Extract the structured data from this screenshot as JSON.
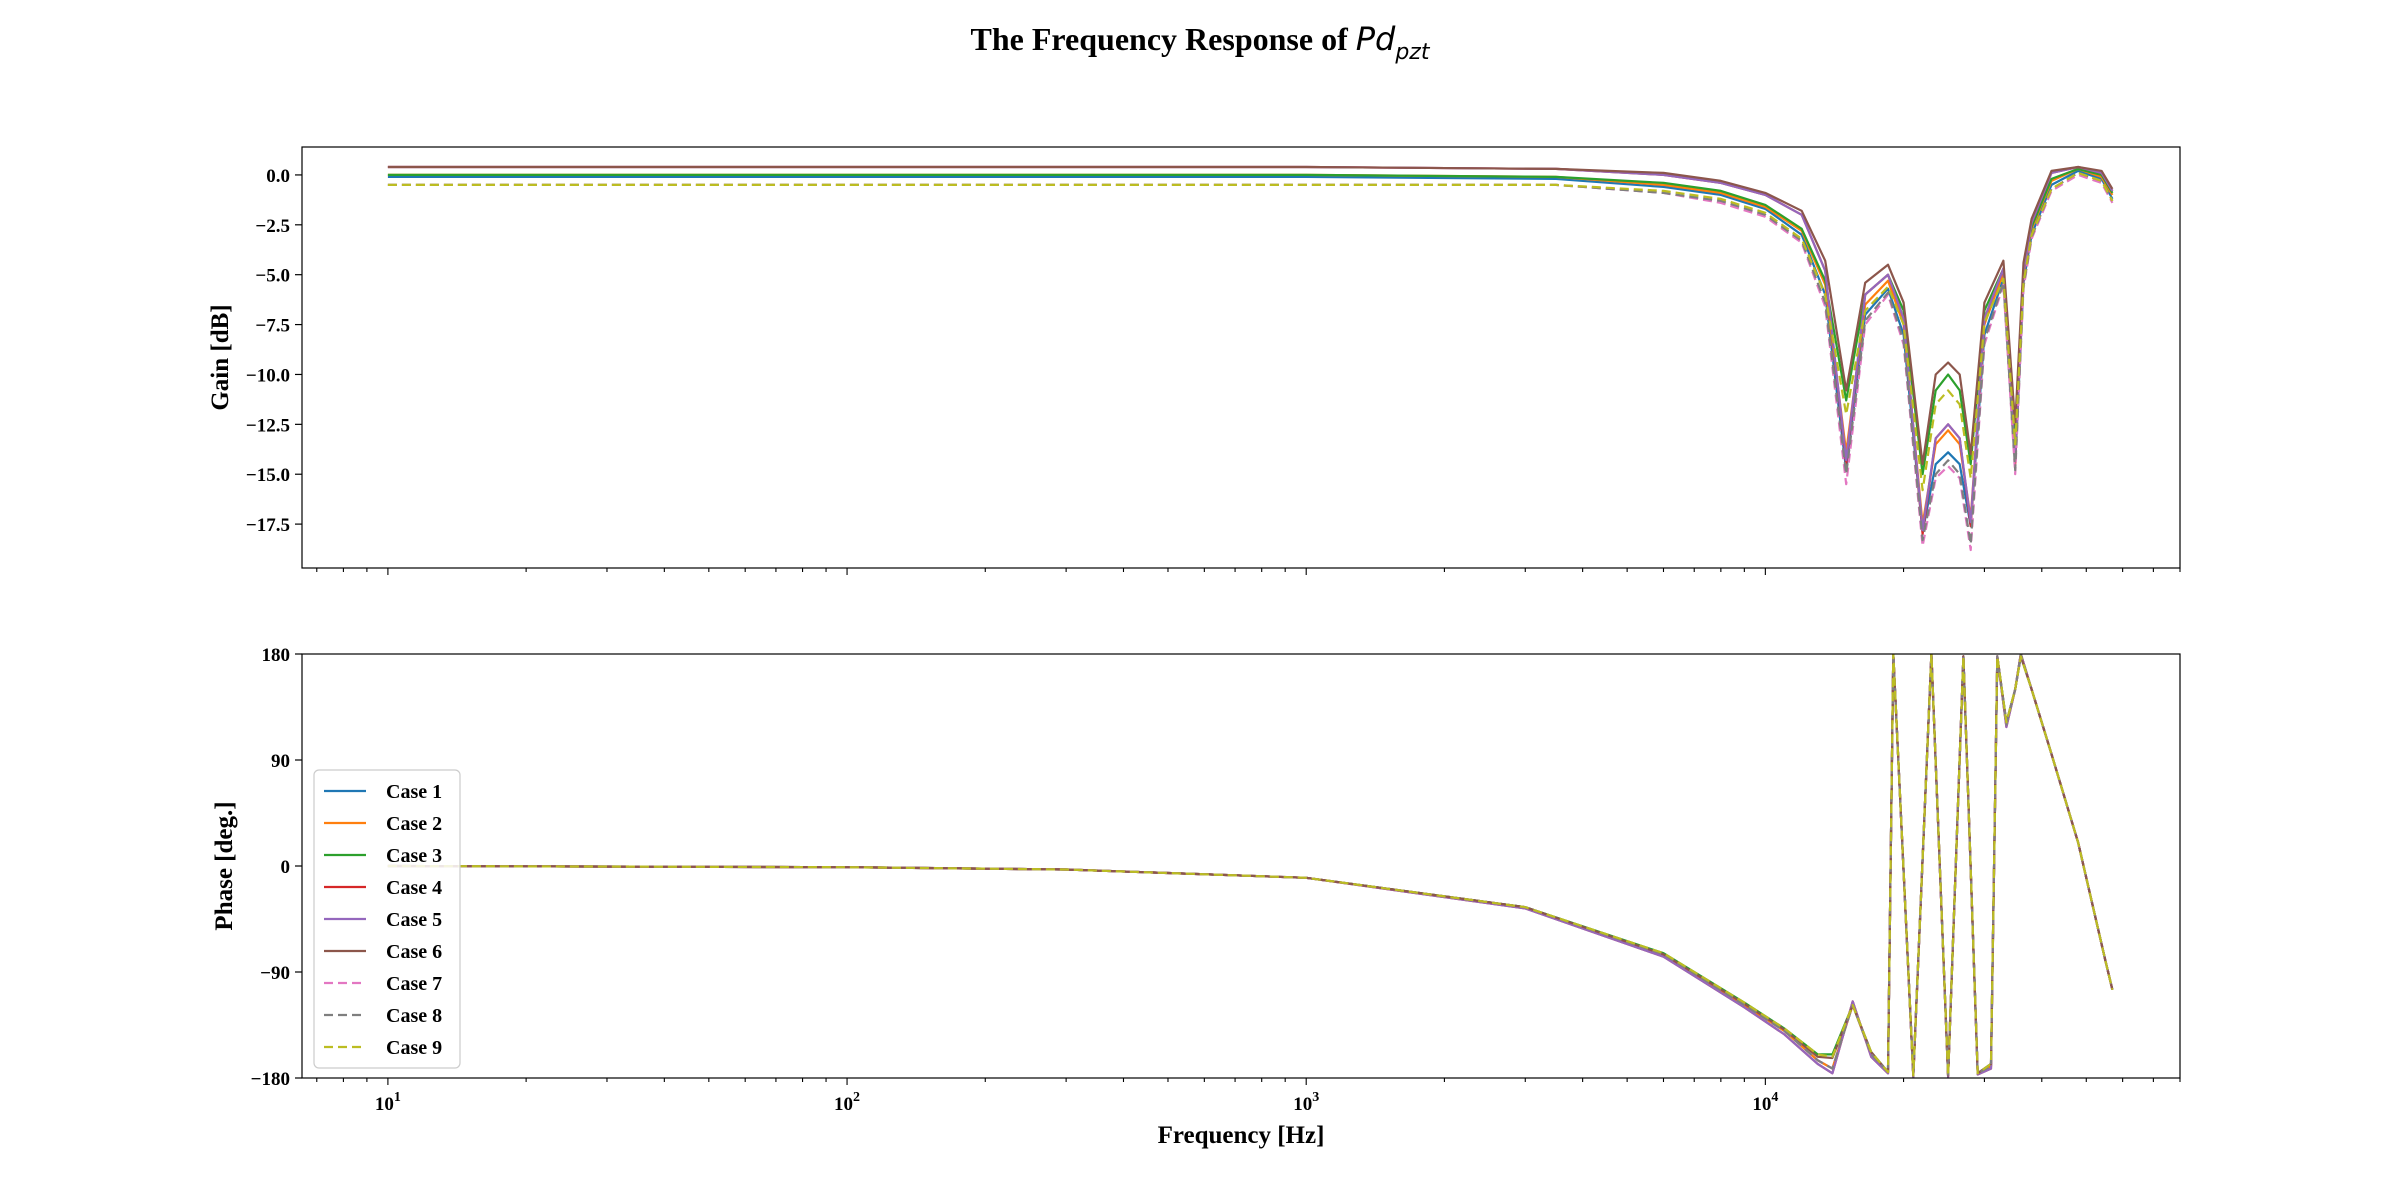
{
  "title": {
    "prefix": "The Frequency Response of ",
    "math_base": "Pd",
    "math_sub": "pzt"
  },
  "chart_data": [
    {
      "type": "line",
      "panel": "gain",
      "ylabel": "Gain [dB]",
      "xscale": "log",
      "xlim": [
        6.5,
        80000
      ],
      "ylim": [
        -19.7,
        1.4
      ],
      "yticks": [
        0.0,
        -2.5,
        -5.0,
        -7.5,
        -10.0,
        -12.5,
        -15.0,
        -17.5
      ],
      "ytick_labels": [
        "0.0",
        "−2.5",
        "−5.0",
        "−7.5",
        "−10.0",
        "−12.5",
        "−15.0",
        "−17.5"
      ],
      "x": [
        10,
        100,
        1000,
        3500,
        6000,
        8000,
        10000,
        12000,
        13500,
        15000,
        16500,
        18500,
        20000,
        22000,
        23500,
        25000,
        26500,
        28000,
        30000,
        33000,
        35000,
        36500,
        38000,
        42000,
        48000,
        54000,
        57000
      ],
      "series": [
        {
          "name": "Case 1",
          "color": "#1f77b4",
          "dash": "solid",
          "values": [
            -0.1,
            -0.1,
            -0.1,
            -0.2,
            -0.6,
            -1.0,
            -1.7,
            -3.0,
            -6.0,
            -14.8,
            -7.0,
            -5.7,
            -8.0,
            -17.9,
            -14.5,
            -13.9,
            -14.5,
            -17.6,
            -8.0,
            -5.2,
            -14.4,
            -5.4,
            -3.0,
            -0.5,
            0.2,
            -0.2,
            -1.2
          ]
        },
        {
          "name": "Case 2",
          "color": "#ff7f0e",
          "dash": "solid",
          "values": [
            0.0,
            0.0,
            0.0,
            -0.1,
            -0.5,
            -0.9,
            -1.6,
            -2.8,
            -5.5,
            -13.9,
            -6.5,
            -5.3,
            -7.5,
            -17.5,
            -13.5,
            -12.8,
            -13.5,
            -17.2,
            -7.5,
            -4.9,
            -14.0,
            -5.0,
            -2.7,
            -0.3,
            0.3,
            -0.1,
            -1.0
          ]
        },
        {
          "name": "Case 3",
          "color": "#2ca02c",
          "dash": "solid",
          "values": [
            0.0,
            0.0,
            0.0,
            -0.1,
            -0.4,
            -0.8,
            -1.5,
            -2.7,
            -5.3,
            -11.3,
            -6.0,
            -5.0,
            -6.8,
            -15.0,
            -10.8,
            -10.0,
            -10.8,
            -14.5,
            -6.8,
            -4.7,
            -13.0,
            -4.8,
            -2.6,
            -0.2,
            0.3,
            0.0,
            -0.9
          ]
        },
        {
          "name": "Case 4",
          "color": "#d62728",
          "dash": "solid",
          "values": [
            0.4,
            0.4,
            0.4,
            0.3,
            0.0,
            -0.4,
            -1.0,
            -2.0,
            -4.8,
            -14.5,
            -6.0,
            -5.0,
            -7.2,
            -18.0,
            -13.2,
            -12.5,
            -13.2,
            -17.6,
            -7.2,
            -4.7,
            -14.5,
            -4.9,
            -2.4,
            0.1,
            0.4,
            0.1,
            -0.8
          ]
        },
        {
          "name": "Case 5",
          "color": "#9467bd",
          "dash": "solid",
          "values": [
            0.4,
            0.4,
            0.4,
            0.3,
            0.0,
            -0.4,
            -1.0,
            -2.0,
            -4.8,
            -14.3,
            -6.0,
            -5.0,
            -7.2,
            -17.8,
            -13.2,
            -12.5,
            -13.2,
            -17.4,
            -7.2,
            -4.7,
            -14.3,
            -4.9,
            -2.4,
            0.1,
            0.4,
            0.1,
            -0.8
          ]
        },
        {
          "name": "Case 6",
          "color": "#8c564b",
          "dash": "solid",
          "values": [
            0.4,
            0.4,
            0.4,
            0.3,
            0.1,
            -0.3,
            -0.9,
            -1.8,
            -4.3,
            -10.8,
            -5.4,
            -4.5,
            -6.4,
            -14.5,
            -10.0,
            -9.4,
            -10.0,
            -14.0,
            -6.4,
            -4.3,
            -12.5,
            -4.4,
            -2.2,
            0.2,
            0.4,
            0.2,
            -0.7
          ]
        },
        {
          "name": "Case 7",
          "color": "#e377c2",
          "dash": "dashed",
          "values": [
            -0.5,
            -0.5,
            -0.5,
            -0.5,
            -0.9,
            -1.4,
            -2.1,
            -3.4,
            -6.6,
            -15.5,
            -7.5,
            -6.0,
            -8.5,
            -18.6,
            -15.2,
            -14.6,
            -15.2,
            -18.8,
            -8.5,
            -5.5,
            -15.0,
            -5.7,
            -3.2,
            -0.8,
            0.0,
            -0.4,
            -1.4
          ]
        },
        {
          "name": "Case 8",
          "color": "#7f7f7f",
          "dash": "dashed",
          "values": [
            -0.5,
            -0.5,
            -0.5,
            -0.5,
            -0.9,
            -1.3,
            -2.0,
            -3.3,
            -6.4,
            -15.0,
            -7.3,
            -5.9,
            -8.3,
            -18.3,
            -15.0,
            -14.3,
            -15.0,
            -18.5,
            -8.3,
            -5.4,
            -14.8,
            -5.6,
            -3.1,
            -0.7,
            0.1,
            -0.3,
            -1.3
          ]
        },
        {
          "name": "Case 9",
          "color": "#bcbd22",
          "dash": "dashed",
          "values": [
            -0.5,
            -0.5,
            -0.5,
            -0.5,
            -0.8,
            -1.2,
            -1.9,
            -3.2,
            -6.0,
            -12.0,
            -6.8,
            -5.6,
            -7.5,
            -15.8,
            -11.5,
            -10.8,
            -11.5,
            -15.2,
            -7.4,
            -5.2,
            -13.5,
            -5.4,
            -3.0,
            -0.7,
            0.1,
            -0.3,
            -1.3
          ]
        }
      ]
    },
    {
      "type": "line",
      "panel": "phase",
      "ylabel": "Phase [deg.]",
      "xlabel": "Frequency [Hz]",
      "xscale": "log",
      "xlim": [
        6.5,
        80000
      ],
      "ylim": [
        -180,
        180
      ],
      "yticks": [
        180,
        90,
        0,
        -90,
        -180
      ],
      "ytick_labels": [
        "180",
        "90",
        "0",
        "−90",
        "−180"
      ],
      "xticks": [
        10,
        100,
        1000,
        10000
      ],
      "xtick_labels": [
        {
          "base": "10",
          "exp": "1"
        },
        {
          "base": "10",
          "exp": "2"
        },
        {
          "base": "10",
          "exp": "3"
        },
        {
          "base": "10",
          "exp": "4"
        }
      ],
      "legend": {
        "placement": "lower-left"
      },
      "x": [
        10,
        100,
        300,
        1000,
        3000,
        6000,
        9000,
        11000,
        13000,
        14000,
        15500,
        17000,
        18500,
        19000,
        21000,
        23000,
        25000,
        27000,
        29000,
        31000,
        32000,
        33500,
        35000,
        36000,
        38000,
        42000,
        48000,
        55000,
        57000
      ],
      "series": [
        {
          "name": "Case 1",
          "color": "#1f77b4",
          "dash": "solid",
          "values": [
            0,
            -1,
            -3,
            -10,
            -35,
            -75,
            -118,
            -140,
            -165,
            -172,
            -118,
            -160,
            -175,
            180,
            -178,
            180,
            -178,
            178,
            -176,
            -170,
            178,
            120,
            150,
            180,
            150,
            95,
            20,
            -80,
            -105
          ]
        },
        {
          "name": "Case 2",
          "color": "#ff7f0e",
          "dash": "solid",
          "values": [
            0,
            -1,
            -3,
            -10,
            -35,
            -75,
            -118,
            -140,
            -165,
            -172,
            -118,
            -160,
            -175,
            180,
            -178,
            180,
            -178,
            178,
            -176,
            -170,
            178,
            120,
            150,
            180,
            150,
            95,
            20,
            -80,
            -105
          ]
        },
        {
          "name": "Case 3",
          "color": "#2ca02c",
          "dash": "solid",
          "values": [
            0,
            -1,
            -3,
            -10,
            -35,
            -74,
            -116,
            -138,
            -160,
            -160,
            -118,
            -158,
            -175,
            180,
            -178,
            180,
            -178,
            178,
            -176,
            -168,
            178,
            122,
            150,
            178,
            150,
            95,
            20,
            -80,
            -105
          ]
        },
        {
          "name": "Case 4",
          "color": "#d62728",
          "dash": "solid",
          "values": [
            0,
            -1,
            -3,
            -10,
            -36,
            -77,
            -120,
            -143,
            -168,
            -176,
            -115,
            -162,
            -176,
            180,
            -179,
            180,
            -179,
            178,
            -177,
            -172,
            178,
            118,
            150,
            180,
            150,
            95,
            20,
            -80,
            -105
          ]
        },
        {
          "name": "Case 5",
          "color": "#9467bd",
          "dash": "solid",
          "values": [
            0,
            -1,
            -3,
            -10,
            -36,
            -77,
            -120,
            -143,
            -168,
            -176,
            -115,
            -162,
            -176,
            180,
            -179,
            180,
            -179,
            178,
            -177,
            -172,
            178,
            118,
            150,
            180,
            150,
            95,
            20,
            -80,
            -105
          ]
        },
        {
          "name": "Case 6",
          "color": "#8c564b",
          "dash": "solid",
          "values": [
            0,
            -1,
            -3,
            -10,
            -35,
            -75,
            -117,
            -139,
            -162,
            -163,
            -118,
            -158,
            -175,
            180,
            -178,
            180,
            -178,
            178,
            -176,
            -168,
            178,
            122,
            150,
            178,
            150,
            95,
            20,
            -80,
            -105
          ]
        },
        {
          "name": "Case 7",
          "color": "#e377c2",
          "dash": "dashed",
          "values": [
            0,
            -1,
            -3,
            -10,
            -35,
            -75,
            -118,
            -140,
            -165,
            -172,
            -118,
            -160,
            -175,
            180,
            -178,
            180,
            -178,
            178,
            -176,
            -170,
            178,
            120,
            150,
            180,
            150,
            95,
            20,
            -80,
            -105
          ]
        },
        {
          "name": "Case 8",
          "color": "#7f7f7f",
          "dash": "dashed",
          "values": [
            0,
            -1,
            -3,
            -10,
            -35,
            -75,
            -118,
            -140,
            -165,
            -172,
            -118,
            -160,
            -175,
            180,
            -178,
            180,
            -178,
            178,
            -176,
            -170,
            178,
            120,
            150,
            180,
            150,
            95,
            20,
            -80,
            -105
          ]
        },
        {
          "name": "Case 9",
          "color": "#bcbd22",
          "dash": "dashed",
          "values": [
            0,
            -1,
            -3,
            -10,
            -35,
            -74,
            -116,
            -138,
            -160,
            -162,
            -118,
            -158,
            -175,
            180,
            -178,
            180,
            -178,
            178,
            -176,
            -168,
            178,
            122,
            150,
            178,
            150,
            95,
            20,
            -80,
            -105
          ]
        }
      ]
    }
  ]
}
